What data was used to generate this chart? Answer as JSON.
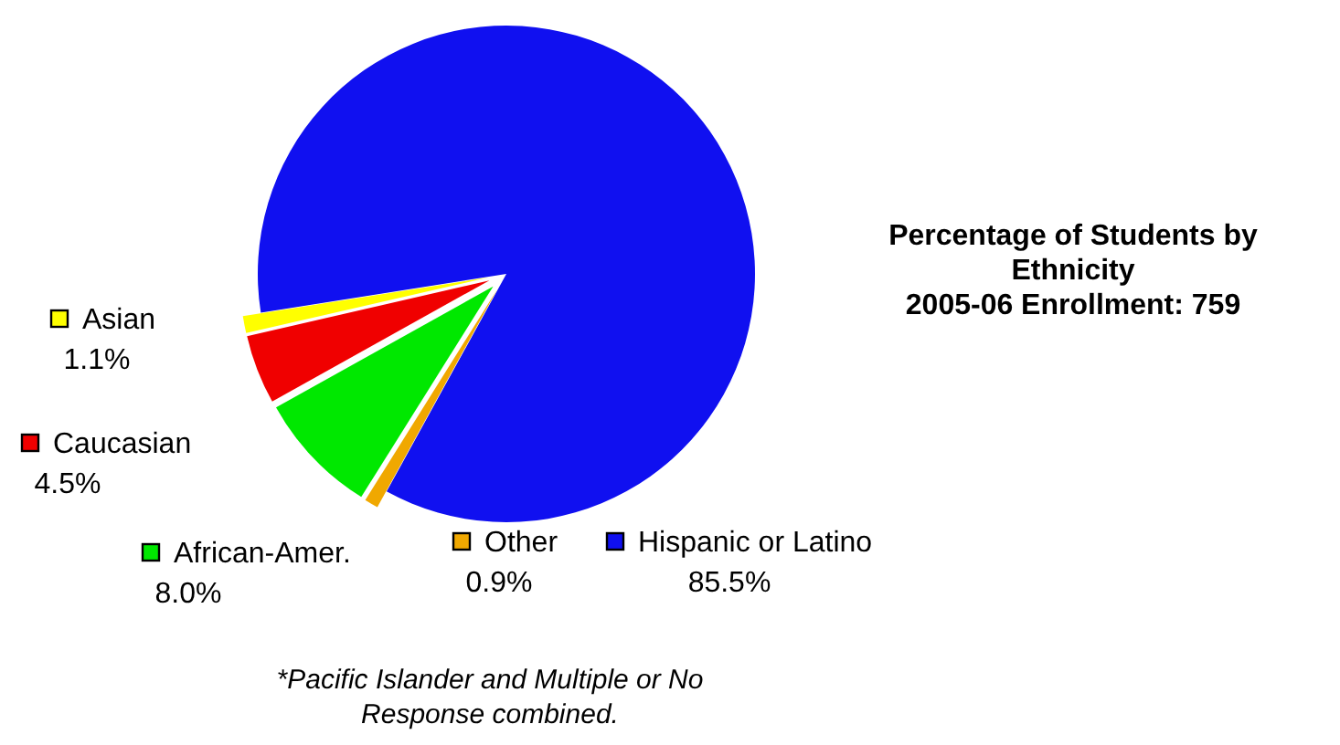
{
  "chart_data": {
    "type": "pie",
    "title": "Percentage of Students by Ethnicity",
    "subtitle": "2005-06 Enrollment: 759",
    "categories": [
      "Hispanic or Latino",
      "Other",
      "African-Amer.",
      "Caucasian",
      "Asian"
    ],
    "values": [
      85.5,
      0.9,
      8.0,
      4.5,
      1.1
    ],
    "value_labels": [
      "85.5%",
      "0.9%",
      "8.0%",
      "4.5%",
      "1.1%"
    ],
    "colors": [
      "#1010f0",
      "#f0a800",
      "#00e800",
      "#f00000",
      "#ffff00"
    ],
    "legend": "left",
    "annotations": [
      "*Pacific Islander and Multiple or No Response combined."
    ]
  }
}
